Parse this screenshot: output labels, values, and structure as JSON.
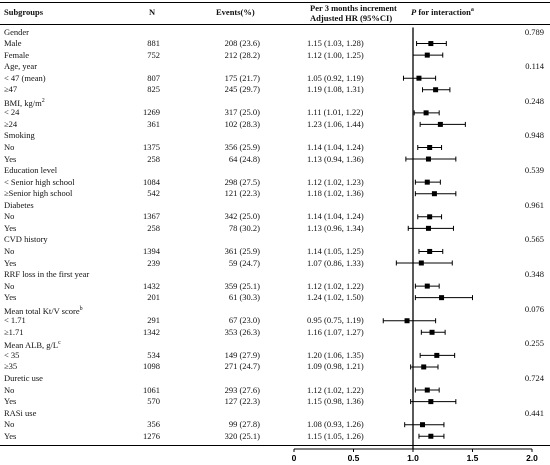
{
  "chart_data": {
    "type": "forest",
    "headers": {
      "subgroups": "Subgroups",
      "n": "N",
      "events": "Events(%)",
      "hr_line1": "Per 3 months increment",
      "hr_line2": "Adjusted HR (95%CI)",
      "p_prefix": "P",
      "p_rest": " for interaction",
      "p_sup": "a"
    },
    "xaxis": {
      "ticks": [
        0,
        0.5,
        1.0,
        1.5,
        2.0
      ],
      "tick_labels": [
        "0",
        "0.5",
        "1.0",
        "1.5",
        "2.0"
      ],
      "ref_line": 1.0,
      "xlim": [
        0,
        2.0
      ]
    },
    "rows": [
      {
        "label": "Gender",
        "kind": "group",
        "p": "0.789"
      },
      {
        "label": "Male",
        "kind": "sub",
        "n": "881",
        "events": "208 (23.6)",
        "hr_text": "1.15 (1.03, 1.28)",
        "hr": 1.15,
        "lo": 1.03,
        "hi": 1.28
      },
      {
        "label": "Female",
        "kind": "sub",
        "n": "752",
        "events": "212 (28.2)",
        "hr_text": "1.12 (1.00, 1.25)",
        "hr": 1.12,
        "lo": 1.0,
        "hi": 1.25
      },
      {
        "label": "Age, year",
        "kind": "group",
        "p": "0.114"
      },
      {
        "label": "< 47 (mean)",
        "kind": "sub",
        "n": "807",
        "events": "175 (21.7)",
        "hr_text": "1.05 (0.92, 1.19)",
        "hr": 1.05,
        "lo": 0.92,
        "hi": 1.19
      },
      {
        "label": "≥47",
        "kind": "sub",
        "n": "825",
        "events": "245 (29.7)",
        "hr_text": "1.19 (1.08, 1.31)",
        "hr": 1.19,
        "lo": 1.08,
        "hi": 1.31
      },
      {
        "label": "BMI, kg/m",
        "sup": "2",
        "kind": "group",
        "p": "0.248"
      },
      {
        "label": "< 24",
        "kind": "sub",
        "n": "1269",
        "events": "317 (25.0)",
        "hr_text": "1.11 (1.01, 1.22)",
        "hr": 1.11,
        "lo": 1.01,
        "hi": 1.22
      },
      {
        "label": "≥24",
        "kind": "sub",
        "n": "361",
        "events": "102 (28.3)",
        "hr_text": "1.23 (1.06, 1.44)",
        "hr": 1.23,
        "lo": 1.06,
        "hi": 1.44
      },
      {
        "label": "Smoking",
        "kind": "group",
        "p": "0.948"
      },
      {
        "label": "No",
        "kind": "sub",
        "n": "1375",
        "events": "356 (25.9)",
        "hr_text": "1.14 (1.04, 1.24)",
        "hr": 1.14,
        "lo": 1.04,
        "hi": 1.24
      },
      {
        "label": "Yes",
        "kind": "sub",
        "n": "258",
        "events": "64 (24.8)",
        "hr_text": "1.13 (0.94, 1.36)",
        "hr": 1.13,
        "lo": 0.94,
        "hi": 1.36
      },
      {
        "label": "Education level",
        "kind": "group",
        "p": "0.539"
      },
      {
        "label": "< Senior high school",
        "kind": "sub",
        "n": "1084",
        "events": "298 (27.5)",
        "hr_text": "1.12 (1.02, 1.23)",
        "hr": 1.12,
        "lo": 1.02,
        "hi": 1.23
      },
      {
        "label": "≥Senior high school",
        "kind": "sub",
        "n": "542",
        "events": "121 (22.3)",
        "hr_text": "1.18 (1.02, 1.36)",
        "hr": 1.18,
        "lo": 1.02,
        "hi": 1.36
      },
      {
        "label": "Diabetes",
        "kind": "group",
        "p": "0.961"
      },
      {
        "label": "No",
        "kind": "sub",
        "n": "1367",
        "events": "342 (25.0)",
        "hr_text": "1.14 (1.04, 1.24)",
        "hr": 1.14,
        "lo": 1.04,
        "hi": 1.24
      },
      {
        "label": "Yes",
        "kind": "sub",
        "n": "258",
        "events": "78 (30.2)",
        "hr_text": "1.13 (0.96, 1.34)",
        "hr": 1.13,
        "lo": 0.96,
        "hi": 1.34
      },
      {
        "label": "CVD history",
        "kind": "group",
        "p": "0.565"
      },
      {
        "label": "No",
        "kind": "sub",
        "n": "1394",
        "events": "361 (25.9)",
        "hr_text": "1.14 (1.05, 1.25)",
        "hr": 1.14,
        "lo": 1.05,
        "hi": 1.25
      },
      {
        "label": "Yes",
        "kind": "sub",
        "n": "239",
        "events": "59 (24.7)",
        "hr_text": "1.07 (0.86, 1.33)",
        "hr": 1.07,
        "lo": 0.86,
        "hi": 1.33
      },
      {
        "label": "RRF loss in the first year",
        "kind": "group",
        "p": "0.348"
      },
      {
        "label": "No",
        "kind": "sub",
        "n": "1432",
        "events": "359 (25.1)",
        "hr_text": "1.12 (1.02, 1.22)",
        "hr": 1.12,
        "lo": 1.02,
        "hi": 1.22
      },
      {
        "label": "Yes",
        "kind": "sub",
        "n": "201",
        "events": "61 (30.3)",
        "hr_text": "1.24 (1.02, 1.50)",
        "hr": 1.24,
        "lo": 1.02,
        "hi": 1.5
      },
      {
        "label": "Mean total Kt/V score",
        "sup": "b",
        "kind": "group",
        "p": "0.076"
      },
      {
        "label": "< 1.71",
        "kind": "sub",
        "n": "291",
        "events": "67 (23.0)",
        "hr_text": "0.95 (0.75, 1.19)",
        "hr": 0.95,
        "lo": 0.75,
        "hi": 1.19
      },
      {
        "label": "≥1.71",
        "kind": "sub",
        "n": "1342",
        "events": "353 (26.3)",
        "hr_text": "1.16 (1.07, 1.27)",
        "hr": 1.16,
        "lo": 1.07,
        "hi": 1.27
      },
      {
        "label": "Mean ALB, g/L",
        "sup": "c",
        "kind": "group",
        "p": "0.255"
      },
      {
        "label": "< 35",
        "kind": "sub",
        "n": "534",
        "events": "149 (27.9)",
        "hr_text": "1.20 (1.06, 1.35)",
        "hr": 1.2,
        "lo": 1.06,
        "hi": 1.35
      },
      {
        "label": "≥35",
        "kind": "sub",
        "n": "1098",
        "events": "271 (24.7)",
        "hr_text": "1.09 (0.98, 1.21)",
        "hr": 1.09,
        "lo": 0.98,
        "hi": 1.21
      },
      {
        "label": "Duretic use",
        "kind": "group",
        "p": "0.724"
      },
      {
        "label": "No",
        "kind": "sub",
        "n": "1061",
        "events": "293 (27.6)",
        "hr_text": "1.12 (1.02, 1.22)",
        "hr": 1.12,
        "lo": 1.02,
        "hi": 1.22
      },
      {
        "label": "Yes",
        "kind": "sub",
        "n": "570",
        "events": "127 (22.3)",
        "hr_text": "1.15 (0.98, 1.36)",
        "hr": 1.15,
        "lo": 0.98,
        "hi": 1.36
      },
      {
        "label": "RASi use",
        "kind": "group",
        "p": "0.441"
      },
      {
        "label": "No",
        "kind": "sub",
        "n": "356",
        "events": "99 (27.8)",
        "hr_text": "1.08 (0.93, 1.26)",
        "hr": 1.08,
        "lo": 0.93,
        "hi": 1.26
      },
      {
        "label": "Yes",
        "kind": "sub",
        "n": "1276",
        "events": "320 (25.1)",
        "hr_text": "1.15 (1.05, 1.26)",
        "hr": 1.15,
        "lo": 1.05,
        "hi": 1.26
      }
    ]
  }
}
